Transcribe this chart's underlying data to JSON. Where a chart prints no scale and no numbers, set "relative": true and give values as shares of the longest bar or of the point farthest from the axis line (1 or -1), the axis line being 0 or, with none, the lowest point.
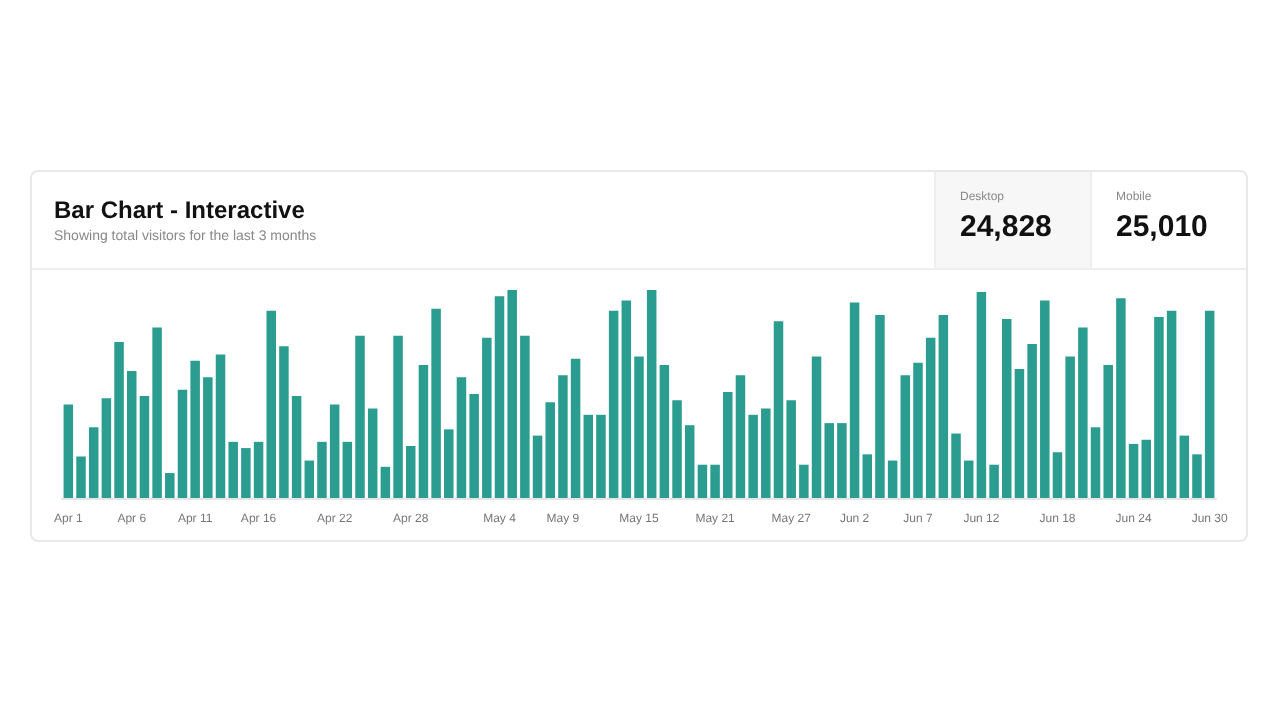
{
  "chart_data": {
    "type": "bar",
    "title": "Bar Chart - Interactive",
    "subtitle": "Showing total visitors for the last 3 months",
    "relative": true,
    "color": "#2a9d90",
    "annotations": [
      "Desktop",
      "24,828",
      "Mobile",
      "25,010"
    ],
    "categories": [
      "Apr 1",
      null,
      null,
      null,
      null,
      "Apr 6",
      null,
      null,
      null,
      null,
      "Apr 11",
      null,
      null,
      null,
      null,
      "Apr 16",
      null,
      null,
      null,
      null,
      null,
      "Apr 22",
      null,
      null,
      null,
      null,
      null,
      "Apr 28",
      null,
      null,
      null,
      null,
      null,
      null,
      "May 4",
      null,
      null,
      null,
      null,
      "May 9",
      null,
      null,
      null,
      null,
      null,
      "May 15",
      null,
      null,
      null,
      null,
      null,
      "May 21",
      null,
      null,
      null,
      null,
      null,
      "May 27",
      null,
      null,
      null,
      null,
      "Jun 2",
      null,
      null,
      null,
      null,
      "Jun 7",
      null,
      null,
      null,
      null,
      "Jun 12",
      null,
      null,
      null,
      null,
      null,
      "Jun 18",
      null,
      null,
      null,
      null,
      null,
      "Jun 24",
      null,
      null,
      null,
      null,
      null,
      "Jun 30"
    ],
    "values": [
      0.45,
      0.2,
      0.34,
      0.48,
      0.75,
      0.61,
      0.49,
      0.82,
      0.12,
      0.52,
      0.66,
      0.58,
      0.69,
      0.27,
      0.24,
      0.27,
      0.9,
      0.73,
      0.49,
      0.18,
      0.27,
      0.45,
      0.27,
      0.78,
      0.43,
      0.15,
      0.78,
      0.25,
      0.64,
      0.91,
      0.33,
      0.58,
      0.5,
      0.77,
      0.97,
      1,
      0.78,
      0.3,
      0.46,
      0.59,
      0.67,
      0.4,
      0.4,
      0.9,
      0.95,
      0.68,
      1,
      0.64,
      0.47,
      0.35,
      0.16,
      0.16,
      0.51,
      0.59,
      0.4,
      0.43,
      0.85,
      0.47,
      0.16,
      0.68,
      0.36,
      0.36,
      0.94,
      0.21,
      0.88,
      0.18,
      0.59,
      0.65,
      0.77,
      0.88,
      0.31,
      0.18,
      0.99,
      0.16,
      0.86,
      0.62,
      0.74,
      0.95,
      0.22,
      0.68,
      0.82,
      0.34,
      0.64,
      0.96,
      0.26,
      0.28,
      0.87,
      0.9,
      0.3,
      0.21,
      0.9
    ]
  }
}
